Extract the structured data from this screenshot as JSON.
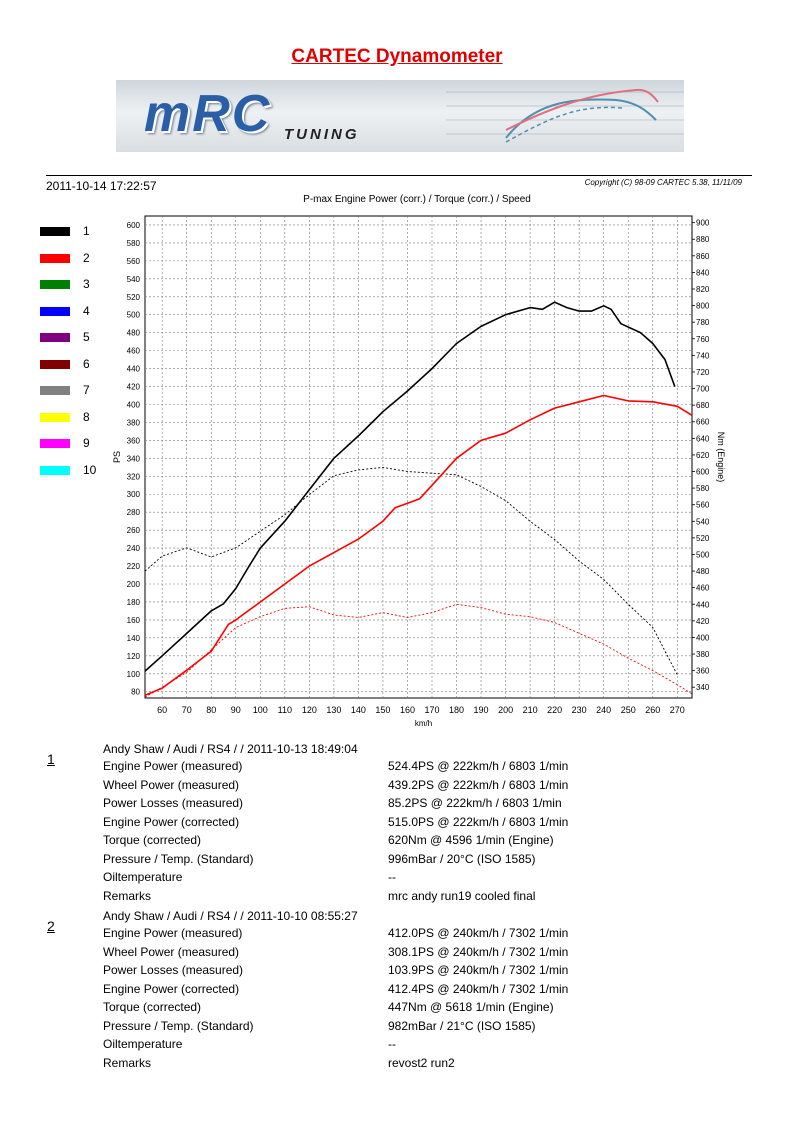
{
  "page": {
    "title": "CARTEC Dynamometer",
    "timestamp": "2011-10-14 17:22:57",
    "copyright": "Copyright (C) 98-09 CARTEC 5.38, 11/11/09"
  },
  "banner": {
    "logo": "mRC",
    "subtitle": "TUNING"
  },
  "legend": [
    {
      "label": "1",
      "color": "#000000"
    },
    {
      "label": "2",
      "color": "#ff0000"
    },
    {
      "label": "3",
      "color": "#008000"
    },
    {
      "label": "4",
      "color": "#0000ff"
    },
    {
      "label": "5",
      "color": "#800080"
    },
    {
      "label": "6",
      "color": "#800000"
    },
    {
      "label": "7",
      "color": "#808080"
    },
    {
      "label": "8",
      "color": "#ffff00"
    },
    {
      "label": "9",
      "color": "#ff00ff"
    },
    {
      "label": "10",
      "color": "#00ffff"
    }
  ],
  "chart_data": {
    "type": "line",
    "title": "P-max Engine Power (corr.) / Torque (corr.) / Speed",
    "xlabel": "km/h",
    "ylabel_left": "PS",
    "ylabel_right": "Nm (Engine)",
    "xlim": [
      53,
      276
    ],
    "ylim_left": [
      73,
      610
    ],
    "ylim_right": [
      327,
      908
    ],
    "x_ticks": [
      60,
      70,
      80,
      90,
      100,
      110,
      120,
      130,
      140,
      150,
      160,
      170,
      180,
      190,
      200,
      210,
      220,
      230,
      240,
      250,
      260,
      270
    ],
    "y_ticks_left": [
      80,
      100,
      120,
      140,
      160,
      180,
      200,
      220,
      240,
      260,
      280,
      300,
      320,
      340,
      360,
      380,
      400,
      420,
      440,
      460,
      480,
      500,
      520,
      540,
      560,
      580,
      600
    ],
    "y_ticks_right": [
      340,
      360,
      380,
      400,
      420,
      440,
      460,
      480,
      500,
      520,
      540,
      560,
      580,
      600,
      620,
      640,
      660,
      680,
      700,
      720,
      740,
      760,
      780,
      800,
      820,
      840,
      860,
      880,
      900
    ],
    "grid": true,
    "series": [
      {
        "name": "1",
        "color": "#000000",
        "style": "solid",
        "axis": "left",
        "points": [
          [
            53,
            103
          ],
          [
            60,
            120
          ],
          [
            70,
            145
          ],
          [
            80,
            170
          ],
          [
            85,
            178
          ],
          [
            90,
            195
          ],
          [
            95,
            218
          ],
          [
            100,
            240
          ],
          [
            110,
            270
          ],
          [
            120,
            305
          ],
          [
            130,
            340
          ],
          [
            140,
            365
          ],
          [
            150,
            392
          ],
          [
            160,
            415
          ],
          [
            170,
            440
          ],
          [
            180,
            468
          ],
          [
            190,
            487
          ],
          [
            200,
            500
          ],
          [
            210,
            508
          ],
          [
            215,
            506
          ],
          [
            220,
            514
          ],
          [
            225,
            508
          ],
          [
            230,
            504
          ],
          [
            235,
            504
          ],
          [
            240,
            510
          ],
          [
            243,
            506
          ],
          [
            247,
            490
          ],
          [
            255,
            480
          ],
          [
            260,
            468
          ],
          [
            265,
            450
          ],
          [
            269,
            420
          ]
        ]
      },
      {
        "name": "1",
        "color": "#000000",
        "style": "dashed",
        "axis": "right",
        "points": [
          [
            53,
            480
          ],
          [
            60,
            498
          ],
          [
            70,
            508
          ],
          [
            80,
            497
          ],
          [
            90,
            508
          ],
          [
            100,
            528
          ],
          [
            110,
            548
          ],
          [
            120,
            572
          ],
          [
            130,
            595
          ],
          [
            140,
            602
          ],
          [
            150,
            605
          ],
          [
            160,
            600
          ],
          [
            170,
            598
          ],
          [
            180,
            596
          ],
          [
            190,
            582
          ],
          [
            200,
            565
          ],
          [
            210,
            540
          ],
          [
            220,
            518
          ],
          [
            230,
            492
          ],
          [
            240,
            470
          ],
          [
            250,
            440
          ],
          [
            260,
            412
          ],
          [
            270,
            355
          ]
        ]
      },
      {
        "name": "2",
        "color": "#ff0000",
        "style": "solid",
        "axis": "left",
        "points": [
          [
            53,
            76
          ],
          [
            60,
            84
          ],
          [
            70,
            104
          ],
          [
            80,
            125
          ],
          [
            87,
            155
          ],
          [
            90,
            160
          ],
          [
            100,
            180
          ],
          [
            110,
            200
          ],
          [
            120,
            220
          ],
          [
            130,
            235
          ],
          [
            140,
            250
          ],
          [
            150,
            270
          ],
          [
            155,
            285
          ],
          [
            160,
            290
          ],
          [
            165,
            295
          ],
          [
            170,
            310
          ],
          [
            180,
            340
          ],
          [
            190,
            360
          ],
          [
            200,
            368
          ],
          [
            210,
            383
          ],
          [
            220,
            396
          ],
          [
            230,
            403
          ],
          [
            240,
            410
          ],
          [
            250,
            404
          ],
          [
            260,
            403
          ],
          [
            270,
            398
          ],
          [
            276,
            388
          ]
        ]
      },
      {
        "name": "2",
        "color": "#ff0000",
        "style": "dashed",
        "axis": "right",
        "points": [
          [
            53,
            328
          ],
          [
            60,
            340
          ],
          [
            70,
            358
          ],
          [
            80,
            385
          ],
          [
            90,
            412
          ],
          [
            100,
            425
          ],
          [
            110,
            435
          ],
          [
            120,
            437
          ],
          [
            130,
            427
          ],
          [
            140,
            424
          ],
          [
            150,
            430
          ],
          [
            160,
            424
          ],
          [
            170,
            430
          ],
          [
            180,
            440
          ],
          [
            190,
            436
          ],
          [
            200,
            428
          ],
          [
            210,
            425
          ],
          [
            220,
            418
          ],
          [
            230,
            405
          ],
          [
            240,
            392
          ],
          [
            250,
            375
          ],
          [
            260,
            360
          ],
          [
            270,
            343
          ],
          [
            276,
            332
          ]
        ]
      }
    ]
  },
  "runs": [
    {
      "number": "1",
      "header": "Andy Shaw / Audi / RS4 /  / 2011-10-13 18:49:04",
      "rows": [
        {
          "label": "Engine Power (measured)",
          "value": "524.4PS @ 222km/h / 6803 1/min"
        },
        {
          "label": "Wheel Power (measured)",
          "value": "439.2PS @ 222km/h / 6803 1/min"
        },
        {
          "label": "Power Losses (measured)",
          "value": "85.2PS @ 222km/h / 6803 1/min"
        },
        {
          "label": "Engine Power (corrected)",
          "value": "515.0PS @ 222km/h / 6803 1/min"
        },
        {
          "label": "Torque (corrected)",
          "value": "620Nm @ 4596 1/min (Engine)"
        },
        {
          "label": "Pressure / Temp. (Standard)",
          "value": "996mBar / 20°C    (ISO 1585)"
        },
        {
          "label": "Oiltemperature",
          "value": "--"
        },
        {
          "label": "Remarks",
          "value": "mrc andy run19 cooled final"
        }
      ]
    },
    {
      "number": "2",
      "header": "Andy Shaw / Audi / RS4 /  / 2011-10-10 08:55:27",
      "rows": [
        {
          "label": "Engine Power (measured)",
          "value": "412.0PS @ 240km/h / 7302 1/min"
        },
        {
          "label": "Wheel Power (measured)",
          "value": "308.1PS @ 240km/h / 7302 1/min"
        },
        {
          "label": "Power Losses (measured)",
          "value": "103.9PS @ 240km/h / 7302 1/min"
        },
        {
          "label": "Engine Power (corrected)",
          "value": "412.4PS @ 240km/h / 7302 1/min"
        },
        {
          "label": "Torque (corrected)",
          "value": "447Nm @ 5618 1/min (Engine)"
        },
        {
          "label": "Pressure / Temp. (Standard)",
          "value": "982mBar / 21°C    (ISO 1585)"
        },
        {
          "label": "Oiltemperature",
          "value": "--"
        },
        {
          "label": "Remarks",
          "value": "revost2 run2"
        }
      ]
    }
  ]
}
